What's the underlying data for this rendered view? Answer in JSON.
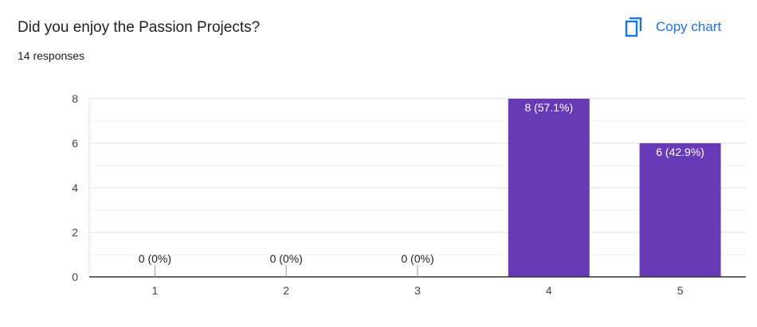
{
  "header": {
    "question": "Did you enjoy the Passion Projects?",
    "responses": "14 responses",
    "copy_label": "Copy chart"
  },
  "colors": {
    "bar": "#673ab7",
    "accent": "#1a73e8"
  },
  "chart_data": {
    "type": "bar",
    "title": "",
    "xlabel": "",
    "ylabel": "",
    "categories": [
      "1",
      "2",
      "3",
      "4",
      "5"
    ],
    "values": [
      0,
      0,
      0,
      8,
      6
    ],
    "data_labels": [
      "0 (0%)",
      "0 (0%)",
      "0 (0%)",
      "8 (57.1%)",
      "6 (42.9%)"
    ],
    "ylim": [
      0,
      8
    ],
    "yticks": [
      "0",
      "2",
      "4",
      "6",
      "8"
    ],
    "grid": true,
    "legend": "none"
  }
}
